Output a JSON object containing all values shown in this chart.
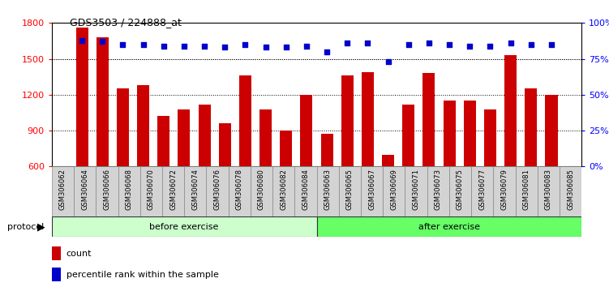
{
  "title": "GDS3503 / 224888_at",
  "samples": [
    "GSM306062",
    "GSM306064",
    "GSM306066",
    "GSM306068",
    "GSM306070",
    "GSM306072",
    "GSM306074",
    "GSM306076",
    "GSM306078",
    "GSM306080",
    "GSM306082",
    "GSM306084",
    "GSM306063",
    "GSM306065",
    "GSM306067",
    "GSM306069",
    "GSM306071",
    "GSM306073",
    "GSM306075",
    "GSM306077",
    "GSM306079",
    "GSM306081",
    "GSM306083",
    "GSM306085"
  ],
  "counts": [
    1760,
    1680,
    1250,
    1280,
    1020,
    1080,
    1120,
    960,
    1360,
    1080,
    900,
    1200,
    870,
    1360,
    1390,
    700,
    1120,
    1380,
    1150,
    1150,
    1080,
    1530,
    1250,
    1200
  ],
  "percentiles": [
    88,
    87,
    85,
    85,
    84,
    84,
    84,
    83,
    85,
    83,
    83,
    84,
    80,
    86,
    86,
    73,
    85,
    86,
    85,
    84,
    84,
    86,
    85,
    85
  ],
  "bar_color": "#cc0000",
  "dot_color": "#0000cc",
  "before_count": 12,
  "after_count": 12,
  "before_label": "before exercise",
  "after_label": "after exercise",
  "before_color": "#ccffcc",
  "after_color": "#66ff66",
  "protocol_label": "protocol",
  "ylim_left": [
    600,
    1800
  ],
  "ylim_right": [
    0,
    100
  ],
  "yticks_left": [
    600,
    900,
    1200,
    1500,
    1800
  ],
  "yticks_right": [
    0,
    25,
    50,
    75,
    100
  ],
  "grid_values": [
    900,
    1200,
    1500
  ],
  "bar_width": 0.6,
  "bg_color": "#ffffff",
  "tick_box_color": "#d3d3d3",
  "tick_box_edge": "#888888"
}
